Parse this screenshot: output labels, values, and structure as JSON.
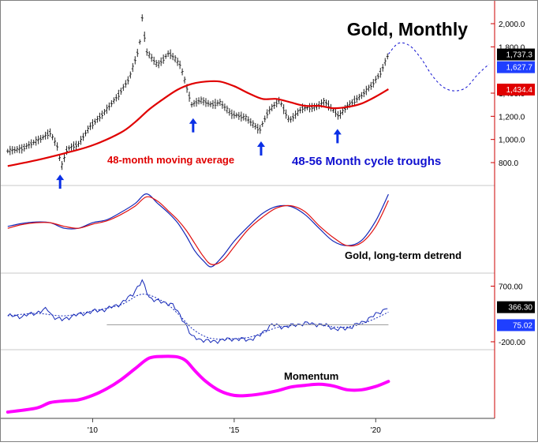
{
  "colors": {
    "background": "#ffffff",
    "frame": "#808080",
    "separator": "#c8c8c8",
    "price_bars": "#222222",
    "moving_average": "#e00000",
    "projection": "#1010d0",
    "arrows": "#0a2fe6",
    "detrend_blue": "#1428b8",
    "detrend_red": "#e01010",
    "momentum": "#ff00ff",
    "axis_line": "#cc0000",
    "tag_black": "#000000",
    "tag_blue": "#1f3fff",
    "tag_red": "#e00000"
  },
  "chart_data": [
    {
      "type": "bar",
      "panel": "price",
      "title": "Gold, Monthly",
      "ylim": [
        650,
        2150
      ],
      "y_ticks": [
        {
          "value": 2000,
          "label": "2,000.0"
        },
        {
          "value": 1800,
          "label": "1,800.0"
        },
        {
          "value": 1400,
          "label": "1,400.0"
        },
        {
          "value": 1200,
          "label": "1,200.0"
        },
        {
          "value": 1000,
          "label": "1,000.0"
        },
        {
          "value": 800,
          "label": "800.0"
        }
      ],
      "price_tags": [
        {
          "value": 1737.3,
          "label": "1,737.3",
          "color_key": "tag_black"
        },
        {
          "value": 1627.7,
          "label": "1,627.7",
          "color_key": "tag_blue"
        },
        {
          "value": 1434.4,
          "label": "1,434.4",
          "color_key": "tag_red"
        }
      ],
      "price_anchors": [
        [
          2007.0,
          900
        ],
        [
          2007.5,
          920
        ],
        [
          2007.8,
          960
        ],
        [
          2008.2,
          1010
        ],
        [
          2008.5,
          1060
        ],
        [
          2008.75,
          940
        ],
        [
          2008.9,
          760
        ],
        [
          2009.1,
          920
        ],
        [
          2009.5,
          960
        ],
        [
          2009.9,
          1110
        ],
        [
          2010.4,
          1230
        ],
        [
          2010.9,
          1380
        ],
        [
          2011.3,
          1530
        ],
        [
          2011.65,
          1800
        ],
        [
          2011.75,
          2050
        ],
        [
          2011.9,
          1760
        ],
        [
          2012.3,
          1640
        ],
        [
          2012.7,
          1750
        ],
        [
          2012.9,
          1700
        ],
        [
          2013.1,
          1640
        ],
        [
          2013.3,
          1470
        ],
        [
          2013.5,
          1300
        ],
        [
          2013.8,
          1340
        ],
        [
          2014.2,
          1300
        ],
        [
          2014.5,
          1320
        ],
        [
          2014.9,
          1220
        ],
        [
          2015.4,
          1190
        ],
        [
          2015.9,
          1080
        ],
        [
          2016.2,
          1240
        ],
        [
          2016.6,
          1340
        ],
        [
          2016.95,
          1160
        ],
        [
          2017.4,
          1270
        ],
        [
          2017.9,
          1280
        ],
        [
          2018.2,
          1330
        ],
        [
          2018.7,
          1200
        ],
        [
          2019.0,
          1290
        ],
        [
          2019.5,
          1380
        ],
        [
          2019.9,
          1480
        ],
        [
          2020.2,
          1590
        ],
        [
          2020.45,
          1737
        ]
      ],
      "series": [
        {
          "name": "48-month moving average",
          "x": [
            2007.0,
            2008.0,
            2009.0,
            2010.0,
            2011.0,
            2011.5,
            2012.0,
            2012.5,
            2013.0,
            2013.5,
            2014.0,
            2014.5,
            2015.0,
            2015.5,
            2016.0,
            2016.5,
            2017.0,
            2017.5,
            2018.0,
            2018.5,
            2019.0,
            2019.5,
            2020.0,
            2020.45
          ],
          "y": [
            770,
            820,
            880,
            950,
            1060,
            1150,
            1260,
            1350,
            1430,
            1480,
            1500,
            1500,
            1460,
            1400,
            1350,
            1350,
            1320,
            1290,
            1290,
            1270,
            1280,
            1310,
            1370,
            1434
          ]
        },
        {
          "name": "Projected cycle",
          "x": [
            2020.45,
            2020.8,
            2021.2,
            2021.6,
            2022.0,
            2022.4,
            2022.8,
            2023.2,
            2023.6,
            2024.0
          ],
          "y": [
            1737,
            1830,
            1810,
            1700,
            1550,
            1450,
            1420,
            1450,
            1560,
            1650
          ]
        }
      ],
      "annotations": [
        "48-month moving average",
        "48-56 Month cycle troughs"
      ],
      "cycle_troughs_x": [
        2008.85,
        2013.55,
        2015.95,
        2018.65
      ]
    },
    {
      "type": "line",
      "panel": "detrend",
      "title": "Gold, long-term detrend",
      "ylim": [
        -1.1,
        1.1
      ],
      "series": [
        {
          "name": "Detrend",
          "x": [
            2007.0,
            2007.5,
            2008.0,
            2008.5,
            2009.0,
            2009.5,
            2010.0,
            2010.5,
            2011.0,
            2011.5,
            2011.9,
            2012.3,
            2012.7,
            2013.0,
            2013.3,
            2013.6,
            2013.9,
            2014.2,
            2014.6,
            2015.0,
            2015.5,
            2016.0,
            2016.5,
            2017.0,
            2017.5,
            2018.0,
            2018.5,
            2019.0,
            2019.5,
            2020.0,
            2020.45
          ],
          "y": [
            0.1,
            0.18,
            0.22,
            0.2,
            0.05,
            0.05,
            0.2,
            0.28,
            0.48,
            0.72,
            0.98,
            0.72,
            0.45,
            0.2,
            -0.15,
            -0.55,
            -0.82,
            -0.99,
            -0.7,
            -0.3,
            0.1,
            0.45,
            0.64,
            0.64,
            0.42,
            0.05,
            -0.3,
            -0.42,
            -0.28,
            0.25,
            0.97
          ]
        },
        {
          "name": "Smoothed",
          "x": [
            2007.0,
            2007.5,
            2008.0,
            2008.5,
            2009.0,
            2009.5,
            2010.0,
            2010.5,
            2011.0,
            2011.5,
            2011.9,
            2012.3,
            2012.7,
            2013.0,
            2013.3,
            2013.6,
            2013.9,
            2014.2,
            2014.6,
            2015.0,
            2015.5,
            2016.0,
            2016.5,
            2017.0,
            2017.5,
            2018.0,
            2018.5,
            2019.0,
            2019.5,
            2020.0,
            2020.45
          ],
          "y": [
            0.05,
            0.15,
            0.2,
            0.2,
            0.1,
            0.05,
            0.16,
            0.25,
            0.42,
            0.65,
            0.9,
            0.78,
            0.5,
            0.28,
            0.0,
            -0.35,
            -0.7,
            -0.93,
            -0.82,
            -0.45,
            0.02,
            0.35,
            0.6,
            0.66,
            0.5,
            0.12,
            -0.2,
            -0.42,
            -0.34,
            0.1,
            0.8
          ]
        }
      ]
    },
    {
      "type": "line",
      "panel": "oscillator",
      "ylim": [
        -290,
        860
      ],
      "y_ticks": [
        {
          "value": 700,
          "label": "700.00"
        },
        {
          "value": -200,
          "label": "-200.00"
        }
      ],
      "price_tags": [
        {
          "value": 366.3,
          "label": "366.30",
          "color_key": "tag_black"
        },
        {
          "value": 75.02,
          "label": "75.02",
          "color_key": "tag_blue"
        }
      ],
      "series": [
        {
          "name": "Oscillator",
          "x": [
            2007.0,
            2007.5,
            2008.0,
            2008.4,
            2008.6,
            2008.9,
            2009.3,
            2009.7,
            2010.0,
            2010.5,
            2011.0,
            2011.4,
            2011.6,
            2011.75,
            2012.0,
            2012.4,
            2012.8,
            2013.0,
            2013.3,
            2013.5,
            2013.8,
            2014.2,
            2014.6,
            2015.0,
            2015.5,
            2015.9,
            2016.3,
            2016.7,
            2017.0,
            2017.5,
            2018.0,
            2018.3,
            2018.6,
            2019.0,
            2019.5,
            2020.0,
            2020.45
          ],
          "y": [
            220,
            210,
            270,
            330,
            210,
            150,
            220,
            260,
            290,
            330,
            420,
            560,
            700,
            780,
            520,
            440,
            420,
            280,
            80,
            -120,
            -160,
            -200,
            -170,
            -150,
            -170,
            -100,
            80,
            40,
            60,
            100,
            80,
            60,
            0,
            20,
            110,
            240,
            366
          ]
        },
        {
          "name": "Average",
          "x": [
            2007.0,
            2008.0,
            2009.0,
            2010.0,
            2011.0,
            2011.75,
            2012.5,
            2013.0,
            2013.5,
            2014.0,
            2014.5,
            2015.0,
            2015.5,
            2016.0,
            2016.5,
            2017.0,
            2017.5,
            2018.0,
            2018.5,
            2019.0,
            2019.5,
            2020.0,
            2020.45
          ],
          "y": [
            220,
            260,
            220,
            300,
            400,
            570,
            450,
            260,
            20,
            -120,
            -160,
            -150,
            -130,
            -60,
            30,
            60,
            80,
            75,
            40,
            40,
            90,
            180,
            280
          ]
        }
      ],
      "reference_line": 75.02
    },
    {
      "type": "line",
      "panel": "momentum",
      "title": "Momentum",
      "ylim": [
        0,
        1.05
      ],
      "series": [
        {
          "name": "Momentum",
          "x": [
            2007.0,
            2008.0,
            2008.5,
            2009.0,
            2009.5,
            2010.0,
            2010.5,
            2011.0,
            2011.5,
            2012.0,
            2012.5,
            2013.0,
            2013.3,
            2013.6,
            2014.0,
            2014.5,
            2015.0,
            2015.5,
            2016.0,
            2016.5,
            2017.0,
            2017.5,
            2018.0,
            2018.5,
            2019.0,
            2019.5,
            2020.0,
            2020.45
          ],
          "y": [
            0.0,
            0.07,
            0.17,
            0.2,
            0.22,
            0.3,
            0.42,
            0.58,
            0.78,
            0.97,
            1.0,
            0.99,
            0.92,
            0.75,
            0.55,
            0.38,
            0.3,
            0.3,
            0.33,
            0.38,
            0.45,
            0.48,
            0.5,
            0.47,
            0.4,
            0.4,
            0.46,
            0.55
          ]
        }
      ]
    }
  ],
  "x_axis": {
    "ticks": [
      {
        "value": 2010,
        "label": "'10"
      },
      {
        "value": 2015,
        "label": "'15"
      },
      {
        "value": 2020,
        "label": "'20"
      }
    ],
    "xlim": [
      2006.95,
      2024.2
    ]
  }
}
